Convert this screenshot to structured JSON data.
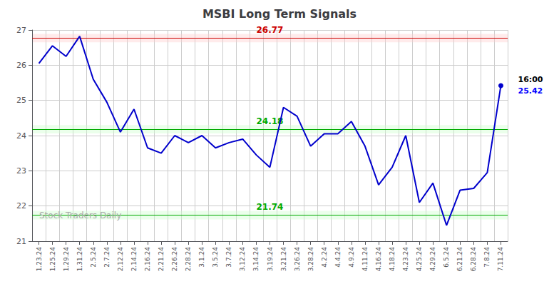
{
  "chart_data": {
    "type": "line",
    "title": "MSBI Long Term Signals",
    "categories": [
      "1.23.24",
      "1.25.24",
      "1.29.24",
      "1.31.24",
      "2.5.24",
      "2.7.24",
      "2.12.24",
      "2.14.24",
      "2.16.24",
      "2.21.24",
      "2.26.24",
      "2.28.24",
      "3.1.24",
      "3.5.24",
      "3.7.24",
      "3.12.24",
      "3.14.24",
      "3.19.24",
      "3.21.24",
      "3.26.24",
      "3.28.24",
      "4.2.24",
      "4.4.24",
      "4.9.24",
      "4.11.24",
      "4.16.24",
      "4.18.24",
      "4.23.24",
      "4.25.24",
      "4.29.24",
      "6.5.24",
      "6.21.24",
      "6.28.24",
      "7.8.24",
      "7.11.24"
    ],
    "values": [
      26.05,
      26.55,
      26.25,
      26.82,
      25.6,
      24.95,
      24.1,
      24.75,
      23.65,
      23.5,
      24.0,
      23.8,
      24.0,
      23.65,
      23.8,
      23.9,
      23.45,
      23.1,
      24.8,
      24.55,
      23.7,
      24.05,
      24.05,
      24.4,
      23.7,
      22.6,
      23.1,
      24.0,
      22.1,
      22.65,
      21.45,
      22.45,
      22.5,
      22.95,
      25.42
    ],
    "color": "#0000cc",
    "ylim": [
      21,
      27
    ],
    "yticks": [
      21,
      22,
      23,
      24,
      25,
      26,
      27
    ],
    "grid": true,
    "reference_lines": [
      {
        "value": 26.77,
        "label": "26.77",
        "color": "#cc0000",
        "fill_color": "#ffcccc"
      },
      {
        "value": 24.18,
        "label": "24.18",
        "color": "#00aa00",
        "fill_color": "#ccffcc"
      },
      {
        "value": 21.74,
        "label": "21.74",
        "color": "#00aa00",
        "fill_color": "#ccffcc"
      }
    ],
    "end_labels": [
      {
        "text": "16:00",
        "color": "#000000"
      },
      {
        "text": "25.42",
        "color": "#0000ff"
      }
    ],
    "watermark": {
      "text": "Stock Traders Daily",
      "color": "#aaaaaa"
    }
  }
}
